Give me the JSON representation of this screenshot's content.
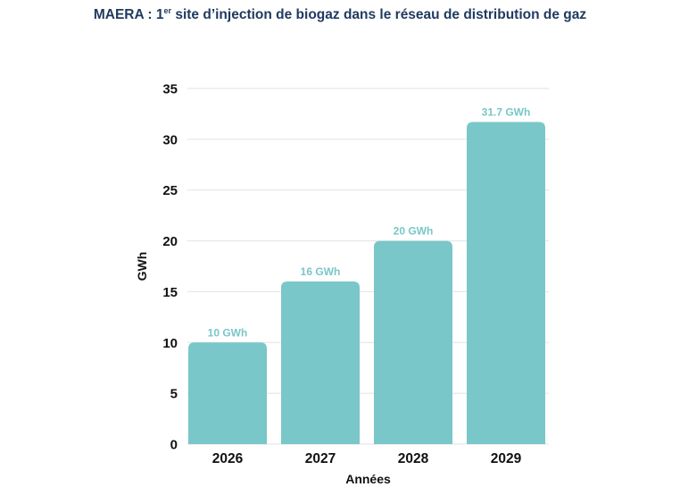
{
  "title": {
    "prefix": "MAERA : 1",
    "superscript": "er",
    "suffix": " site d’injection de biogaz dans le réseau de distribution de gaz"
  },
  "colors": {
    "bar": "#79c7c8",
    "data_label": "#79c7c8",
    "grid": "#e2e2e2",
    "title": "#1f3a5f",
    "text": "#111111"
  },
  "chart_data": {
    "type": "bar",
    "categories": [
      "2026",
      "2027",
      "2028",
      "2029"
    ],
    "values": [
      10,
      16,
      20,
      31.7
    ],
    "data_labels": [
      "10 GWh",
      "16 GWh",
      "20 GWh",
      "31.7 GWh"
    ],
    "xlabel": "Années",
    "ylabel": "GWh",
    "ylim": [
      0,
      35
    ],
    "yticks": [
      0,
      5,
      10,
      15,
      20,
      25,
      30,
      35
    ],
    "grid": true,
    "legend": "none"
  }
}
